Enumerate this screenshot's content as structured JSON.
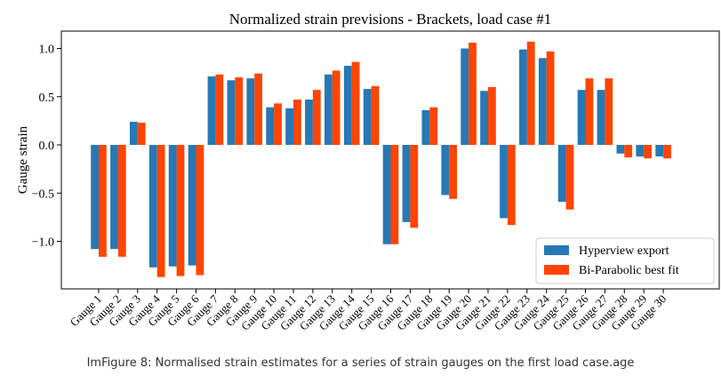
{
  "caption": "ImFigure 8: Normalised strain estimates for a series of strain gauges on the first load case.age",
  "colors": {
    "series_1": "#2878b5",
    "series_2": "#ff4500"
  },
  "chart_data": {
    "type": "bar",
    "title": "Normalized strain previsions - Brackets, load case #1",
    "xlabel": "",
    "ylabel": "Gauge strain",
    "ylim": [
      -1.45,
      1.2
    ],
    "yticks": [
      -1.0,
      -0.5,
      0.0,
      0.5,
      1.0
    ],
    "ytick_labels": [
      "−1.0",
      "−0.5",
      "0.0",
      "0.5",
      "1.0"
    ],
    "grid": false,
    "legend_position": "lower-right",
    "categories": [
      "Gauge 1",
      "Gauge 2",
      "Gauge 3",
      "Gauge 4",
      "Gauge 5",
      "Gauge 6",
      "Gauge 7",
      "Gauge 8",
      "Gauge 9",
      "Gauge 10",
      "Gauge 11",
      "Gauge 12",
      "Gauge 13",
      "Gauge 14",
      "Gauge 15",
      "Gauge 16",
      "Gauge 17",
      "Gauge 18",
      "Gauge 19",
      "Gauge 20",
      "Gauge 21",
      "Gauge 22",
      "Gauge 23",
      "Gauge 24",
      "Gauge 25",
      "Gauge 26",
      "Gauge 27",
      "Gauge 28",
      "Gauge 29",
      "Gauge 30"
    ],
    "series": [
      {
        "name": "Hyperview export",
        "values": [
          -1.08,
          -1.08,
          0.24,
          -1.27,
          -1.26,
          -1.25,
          0.71,
          0.67,
          0.69,
          0.39,
          0.38,
          0.47,
          0.73,
          0.82,
          0.58,
          -1.03,
          -0.8,
          0.36,
          -0.52,
          1.0,
          0.56,
          -0.76,
          0.99,
          0.9,
          -0.59,
          0.57,
          0.57,
          -0.09,
          -0.12,
          -0.12
        ]
      },
      {
        "name": "Bi-Parabolic best fit",
        "values": [
          -1.16,
          -1.16,
          0.23,
          -1.37,
          -1.36,
          -1.35,
          0.73,
          0.7,
          0.74,
          0.43,
          0.47,
          0.57,
          0.77,
          0.86,
          0.61,
          -1.03,
          -0.86,
          0.39,
          -0.56,
          1.06,
          0.6,
          -0.83,
          1.07,
          0.97,
          -0.67,
          0.69,
          0.69,
          -0.13,
          -0.14,
          -0.14
        ]
      }
    ]
  }
}
